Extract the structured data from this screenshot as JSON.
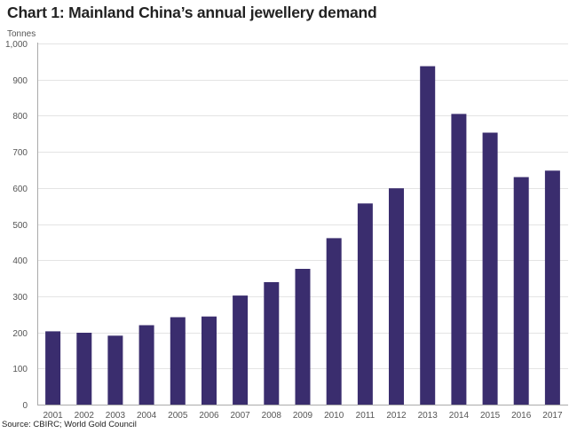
{
  "chart_data": {
    "type": "bar",
    "title": "Chart 1: Mainland China’s annual jewellery demand",
    "ylabel": "Tonnes",
    "xlabel": "",
    "source": "Source: CBIRC; World Gold Council",
    "categories": [
      "2001",
      "2002",
      "2003",
      "2004",
      "2005",
      "2006",
      "2007",
      "2008",
      "2009",
      "2010",
      "2011",
      "2012",
      "2013",
      "2014",
      "2015",
      "2016",
      "2017"
    ],
    "values": [
      203,
      199,
      191,
      220,
      242,
      244,
      302,
      339,
      376,
      461,
      557,
      599,
      937,
      805,
      753,
      630,
      648
    ],
    "ylim": [
      0,
      1000
    ],
    "yticks": [
      0,
      100,
      200,
      300,
      400,
      500,
      600,
      700,
      800,
      900,
      1000
    ],
    "ytick_labels": [
      "0",
      "100",
      "200",
      "300",
      "400",
      "500",
      "600",
      "700",
      "800",
      "900",
      "1,000"
    ],
    "grid": true,
    "legend": "none",
    "bar_color": "#3a2d6e"
  }
}
